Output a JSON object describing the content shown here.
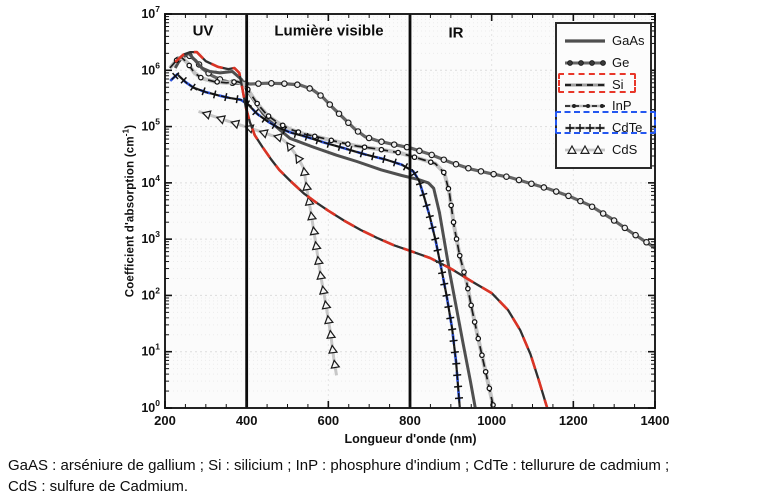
{
  "figure": {
    "regions": {
      "uv": "UV",
      "visible": "Lumière visible",
      "ir": "IR"
    },
    "region_boundaries_nm": [
      400,
      800
    ],
    "caption_line1": "GaAS : arséniure de gallium ; Si : silicium ; InP : phosphure d'indium ; CdTe : tellurure de cadmium ;",
    "caption_line2": "CdS : sulfure de Cadmium."
  },
  "chart_data": {
    "type": "line",
    "title": "",
    "xlabel": "Longueur d'onde (nm)",
    "ylabel": "Coefficient d'absorption (cm-1)",
    "ylabel_parts": {
      "prefix": "Coefficient d'absorption (cm",
      "sup": "-1",
      "suffix": ")"
    },
    "x_range_nm": [
      200,
      1400
    ],
    "x_ticks": [
      200,
      400,
      600,
      800,
      1000,
      1200,
      1400
    ],
    "x_minor_step": 50,
    "y_scale": "log",
    "y_tick_exponents": [
      0,
      1,
      2,
      3,
      4,
      5,
      6,
      7
    ],
    "grid": true,
    "legend_position": "top-right",
    "highlight_colors": {
      "si_box": "#e8372a",
      "cdte_box": "#2457f0",
      "si_line": "#db3425",
      "cdte_line": "#2a52e0"
    },
    "series": [
      {
        "key": "gaas",
        "label": "GaAs",
        "points": [
          [
            225,
            1100000.0
          ],
          [
            240,
            1700000.0
          ],
          [
            258,
            2000000.0
          ],
          [
            272,
            1550000.0
          ],
          [
            290,
            1100000.0
          ],
          [
            310,
            950000.0
          ],
          [
            335,
            900000.0
          ],
          [
            365,
            950000.0
          ],
          [
            388,
            680000.0
          ],
          [
            400,
            450000.0
          ],
          [
            418,
            290000.0
          ],
          [
            440,
            170000.0
          ],
          [
            465,
            110000.0
          ],
          [
            506,
            62000.0
          ],
          [
            560,
            44000.0
          ],
          [
            620,
            31000.0
          ],
          [
            670,
            24000.0
          ],
          [
            730,
            17000.0
          ],
          [
            780,
            13500.0
          ],
          [
            820,
            11500.0
          ],
          [
            845,
            10000.0
          ],
          [
            858,
            8000.0
          ],
          [
            872,
            3000.0
          ],
          [
            885,
            850.0
          ],
          [
            898,
            240.0
          ],
          [
            912,
            70.0
          ],
          [
            930,
            14.0
          ],
          [
            948,
            3.0
          ],
          [
            960,
            1.0
          ]
        ]
      },
      {
        "key": "ge",
        "label": "Ge",
        "points": [
          [
            218,
            1250000.0
          ],
          [
            235,
            1600000.0
          ],
          [
            256,
            1900000.0
          ],
          [
            275,
            1500000.0
          ],
          [
            293,
            1050000.0
          ],
          [
            315,
            800000.0
          ],
          [
            340,
            660000.0
          ],
          [
            370,
            590000.0
          ],
          [
            410,
            570000.0
          ],
          [
            450,
            590000.0
          ],
          [
            490,
            580000.0
          ],
          [
            530,
            550000.0
          ],
          [
            560,
            460000.0
          ],
          [
            585,
            340000.0
          ],
          [
            610,
            220000.0
          ],
          [
            640,
            135000.0
          ],
          [
            665,
            90000.0
          ],
          [
            690,
            66000.0
          ],
          [
            720,
            56000.0
          ],
          [
            760,
            48000.0
          ],
          [
            800,
            42000.0
          ],
          [
            850,
            32000.0
          ],
          [
            900,
            23000.0
          ],
          [
            950,
            17500.0
          ],
          [
            1000,
            14500.0
          ],
          [
            1045,
            12500.0
          ],
          [
            1090,
            10000.0
          ],
          [
            1140,
            7800.0
          ],
          [
            1190,
            5800.0
          ],
          [
            1240,
            4000.0
          ],
          [
            1290,
            2400.0
          ],
          [
            1340,
            1350.0
          ],
          [
            1400,
            700.0
          ]
        ]
      },
      {
        "key": "si",
        "label": "Si",
        "points": [
          [
            225,
            1400000.0
          ],
          [
            245,
            1900000.0
          ],
          [
            262,
            2100000.0
          ],
          [
            278,
            2100000.0
          ],
          [
            300,
            1450000.0
          ],
          [
            330,
            1150000.0
          ],
          [
            355,
            1050000.0
          ],
          [
            370,
            1100000.0
          ],
          [
            382,
            900000.0
          ],
          [
            390,
            450000.0
          ],
          [
            398,
            220000.0
          ],
          [
            408,
            120000.0
          ],
          [
            420,
            70000.0
          ],
          [
            438,
            44000.0
          ],
          [
            460,
            26000.0
          ],
          [
            480,
            17000.0
          ],
          [
            506,
            11000.0
          ],
          [
            540,
            6500.0
          ],
          [
            570,
            4500.0
          ],
          [
            600,
            3200.0
          ],
          [
            640,
            2100.0
          ],
          [
            680,
            1450.0
          ],
          [
            720,
            1050.0
          ],
          [
            760,
            780.0
          ],
          [
            800,
            620.0
          ],
          [
            850,
            460.0
          ],
          [
            900,
            300.0
          ],
          [
            950,
            180.0
          ],
          [
            1000,
            110.0
          ],
          [
            1040,
            55.0
          ],
          [
            1070,
            24.0
          ],
          [
            1095,
            9.0
          ],
          [
            1115,
            3.2
          ],
          [
            1136,
            1.0
          ]
        ]
      },
      {
        "key": "inp",
        "label": "InP",
        "points": [
          [
            212,
            1100000.0
          ],
          [
            228,
            1500000.0
          ],
          [
            240,
            1700000.0
          ],
          [
            255,
            1350000.0
          ],
          [
            272,
            900000.0
          ],
          [
            290,
            720000.0
          ],
          [
            320,
            630000.0
          ],
          [
            350,
            600000.0
          ],
          [
            378,
            630000.0
          ],
          [
            395,
            560000.0
          ],
          [
            408,
            400000.0
          ],
          [
            425,
            260000.0
          ],
          [
            450,
            160000.0
          ],
          [
            478,
            115000.0
          ],
          [
            506,
            90000.0
          ],
          [
            540,
            74000.0
          ],
          [
            575,
            65000.0
          ],
          [
            620,
            54000.0
          ],
          [
            670,
            45000.0
          ],
          [
            720,
            40000.0
          ],
          [
            776,
            34000.0
          ],
          [
            830,
            26000.0
          ],
          [
            862,
            22000.0
          ],
          [
            884,
            15000.0
          ],
          [
            896,
            7000.0
          ],
          [
            908,
            1700.0
          ],
          [
            922,
            500.0
          ],
          [
            938,
            180.0
          ],
          [
            952,
            55.0
          ],
          [
            968,
            16.0
          ],
          [
            985,
            4.5
          ],
          [
            1005,
            1.0
          ]
        ]
      },
      {
        "key": "cdte",
        "label": "CdTe",
        "points": [
          [
            213,
            650000.0
          ],
          [
            230,
            850000.0
          ],
          [
            250,
            620000.0
          ],
          [
            270,
            490000.0
          ],
          [
            300,
            410000.0
          ],
          [
            330,
            360000.0
          ],
          [
            360,
            320000.0
          ],
          [
            385,
            300000.0
          ],
          [
            403,
            250000.0
          ],
          [
            425,
            170000.0
          ],
          [
            450,
            125000.0
          ],
          [
            475,
            98000.0
          ],
          [
            506,
            79000.0
          ],
          [
            545,
            66000.0
          ],
          [
            590,
            52000.0
          ],
          [
            640,
            41000.0
          ],
          [
            690,
            32000.0
          ],
          [
            740,
            26000.0
          ],
          [
            780,
            21000.0
          ],
          [
            808,
            16000.0
          ],
          [
            822,
            11000.0
          ],
          [
            835,
            5500.0
          ],
          [
            848,
            2600.0
          ],
          [
            862,
            1000.0
          ],
          [
            876,
            320.0
          ],
          [
            890,
            95.0
          ],
          [
            903,
            26.0
          ],
          [
            913,
            6.5
          ],
          [
            922,
            1.0
          ]
        ]
      },
      {
        "key": "cds",
        "label": "CdS",
        "points": [
          [
            282,
            185000.0
          ],
          [
            310,
            160000.0
          ],
          [
            340,
            135000.0
          ],
          [
            370,
            115000.0
          ],
          [
            400,
            98000.0
          ],
          [
            430,
            83000.0
          ],
          [
            460,
            70000.0
          ],
          [
            482,
            64000.0
          ],
          [
            500,
            50000.0
          ],
          [
            515,
            36000.0
          ],
          [
            528,
            26000.0
          ],
          [
            540,
            18000.0
          ],
          [
            550,
            6000.0
          ],
          [
            558,
            2800.0
          ],
          [
            566,
            1200.0
          ],
          [
            574,
            500.0
          ],
          [
            582,
            210.0
          ],
          [
            590,
            100.0
          ],
          [
            598,
            46.0
          ],
          [
            606,
            20.0
          ],
          [
            613,
            8.0
          ],
          [
            620,
            3.8
          ]
        ]
      }
    ]
  }
}
